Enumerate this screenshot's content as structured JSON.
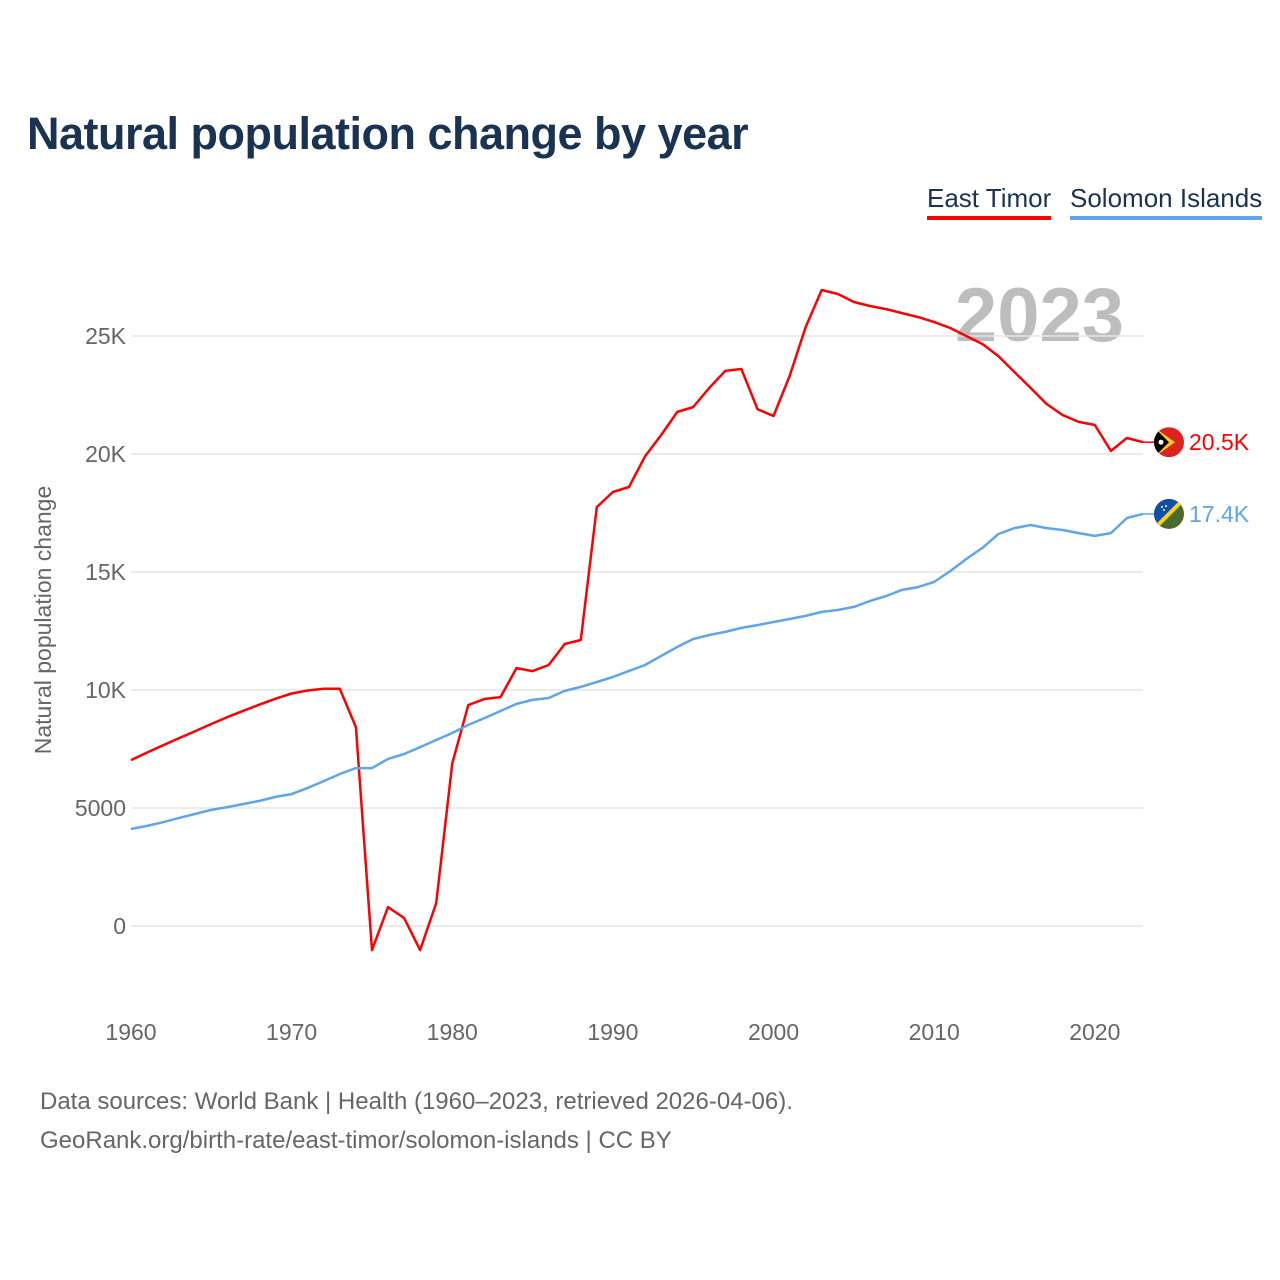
{
  "chart_data": {
    "type": "line",
    "title": "Natural population change by year",
    "xlabel": "",
    "ylabel": "Natural population change",
    "xlim": [
      1960,
      2023
    ],
    "ylim": [
      -1500,
      28000
    ],
    "grid": true,
    "legend_position": "top-right",
    "year_watermark": "2023",
    "x_ticks": [
      1960,
      1970,
      1980,
      1990,
      2000,
      2010,
      2020
    ],
    "x_tick_labels": [
      "1960",
      "1970",
      "1980",
      "1990",
      "2000",
      "2010",
      "2020"
    ],
    "y_ticks": [
      0,
      5000,
      10000,
      15000,
      20000,
      25000
    ],
    "y_tick_labels": [
      "0",
      "5000",
      "10K",
      "15K",
      "20K",
      "25K"
    ],
    "x": [
      1960,
      1961,
      1962,
      1963,
      1964,
      1965,
      1966,
      1967,
      1968,
      1969,
      1970,
      1971,
      1972,
      1973,
      1974,
      1975,
      1976,
      1977,
      1978,
      1979,
      1980,
      1981,
      1982,
      1983,
      1984,
      1985,
      1986,
      1987,
      1988,
      1989,
      1990,
      1991,
      1992,
      1993,
      1994,
      1995,
      1996,
      1997,
      1998,
      1999,
      2000,
      2001,
      2002,
      2003,
      2004,
      2005,
      2006,
      2007,
      2008,
      2009,
      2010,
      2011,
      2012,
      2013,
      2014,
      2015,
      2016,
      2017,
      2018,
      2019,
      2020,
      2021,
      2022,
      2023
    ],
    "series": [
      {
        "name": "East Timor",
        "color": "#ff0000",
        "end_label": "20.5K",
        "flag": "east-timor-flag",
        "values": [
          7030,
          7350,
          7660,
          7960,
          8260,
          8560,
          8850,
          9120,
          9380,
          9630,
          9850,
          9980,
          10050,
          10050,
          8430,
          -1020,
          800,
          340,
          -1020,
          970,
          6900,
          9360,
          9620,
          9700,
          10930,
          10800,
          11060,
          11950,
          12120,
          17750,
          18390,
          18600,
          19900,
          20800,
          21780,
          21990,
          22800,
          23520,
          23600,
          21900,
          21610,
          23300,
          25380,
          26950,
          26780,
          26440,
          26270,
          26140,
          25970,
          25800,
          25590,
          25340,
          25000,
          24660,
          24150,
          23470,
          22800,
          22120,
          21650,
          21360,
          21230,
          20130,
          20680,
          20500
        ]
      },
      {
        "name": "Solomon Islands",
        "color": "#5fa5ea",
        "end_label": "17.4K",
        "flag": "solomon-islands-flag",
        "values": [
          4110,
          4240,
          4400,
          4580,
          4750,
          4920,
          5040,
          5170,
          5300,
          5470,
          5590,
          5850,
          6140,
          6440,
          6690,
          6690,
          7080,
          7290,
          7580,
          7880,
          8180,
          8520,
          8810,
          9110,
          9410,
          9580,
          9660,
          9960,
          10130,
          10340,
          10550,
          10810,
          11060,
          11440,
          11820,
          12160,
          12330,
          12460,
          12630,
          12750,
          12880,
          13010,
          13140,
          13310,
          13390,
          13520,
          13770,
          13980,
          14240,
          14360,
          14580,
          15040,
          15550,
          16020,
          16610,
          16860,
          16990,
          16860,
          16780,
          16650,
          16530,
          16650,
          17290,
          17460
        ]
      }
    ]
  },
  "footer": {
    "source_line": "Data sources: World Bank | Health (1960–2023, retrieved 2026-04-06).",
    "credit_line": "GeoRank.org/birth-rate/east-timor/solomon-islands | CC BY"
  }
}
